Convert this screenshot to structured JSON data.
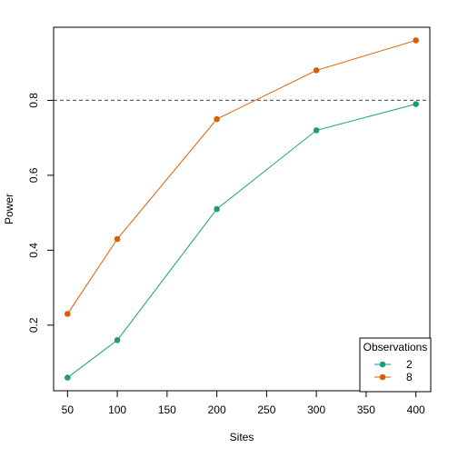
{
  "chart_data": {
    "type": "line",
    "title": "",
    "xlabel": "Sites",
    "ylabel": "Power",
    "x": [
      50,
      100,
      200,
      300,
      400
    ],
    "series": [
      {
        "name": "2",
        "color": "#1b9e77",
        "values": [
          0.06,
          0.16,
          0.51,
          0.72,
          0.79
        ]
      },
      {
        "name": "8",
        "color": "#d95f02",
        "values": [
          0.23,
          0.43,
          0.75,
          0.88,
          0.96
        ]
      }
    ],
    "reference_line": {
      "y": 0.8,
      "style": "dashed",
      "color": "#666666"
    },
    "xlim": [
      36,
      414
    ],
    "ylim": [
      0.025,
      0.995
    ],
    "x_ticks": [
      "50",
      "100",
      "150",
      "200",
      "250",
      "300",
      "350",
      "400"
    ],
    "y_ticks": [
      "0.2",
      "0.4",
      "0.6",
      "0.8"
    ],
    "grid": false,
    "legend": {
      "title": "Observations",
      "position": "bottom-right"
    }
  }
}
